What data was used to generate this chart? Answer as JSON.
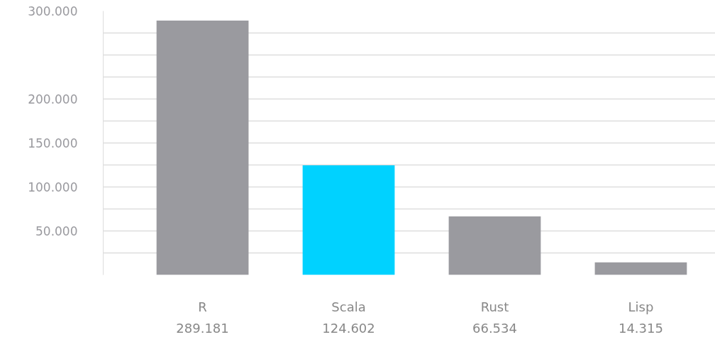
{
  "chart_data": {
    "type": "bar",
    "categories": [
      "R",
      "Scala",
      "Rust",
      "Lisp"
    ],
    "values": [
      289181,
      124602,
      66534,
      14315
    ],
    "colors": [
      "#9a9a9f",
      "#00d2ff",
      "#9a9a9f",
      "#9a9a9f"
    ],
    "value_labels": [
      "289.181",
      "124.602",
      "66.534",
      "14.315"
    ],
    "ylim": [
      0,
      300000
    ],
    "yticks": [
      {
        "value": 25000,
        "label": null
      },
      {
        "value": 50000,
        "label": "50.000"
      },
      {
        "value": 75000,
        "label": null
      },
      {
        "value": 100000,
        "label": "100.000"
      },
      {
        "value": 125000,
        "label": null
      },
      {
        "value": 150000,
        "label": "150.000"
      },
      {
        "value": 175000,
        "label": null
      },
      {
        "value": 200000,
        "label": "200.000"
      },
      {
        "value": 225000,
        "label": null
      },
      {
        "value": 250000,
        "label": null
      },
      {
        "value": 275000,
        "label": null
      },
      {
        "value": 300000,
        "label": "300.000"
      }
    ],
    "grid": "y"
  }
}
